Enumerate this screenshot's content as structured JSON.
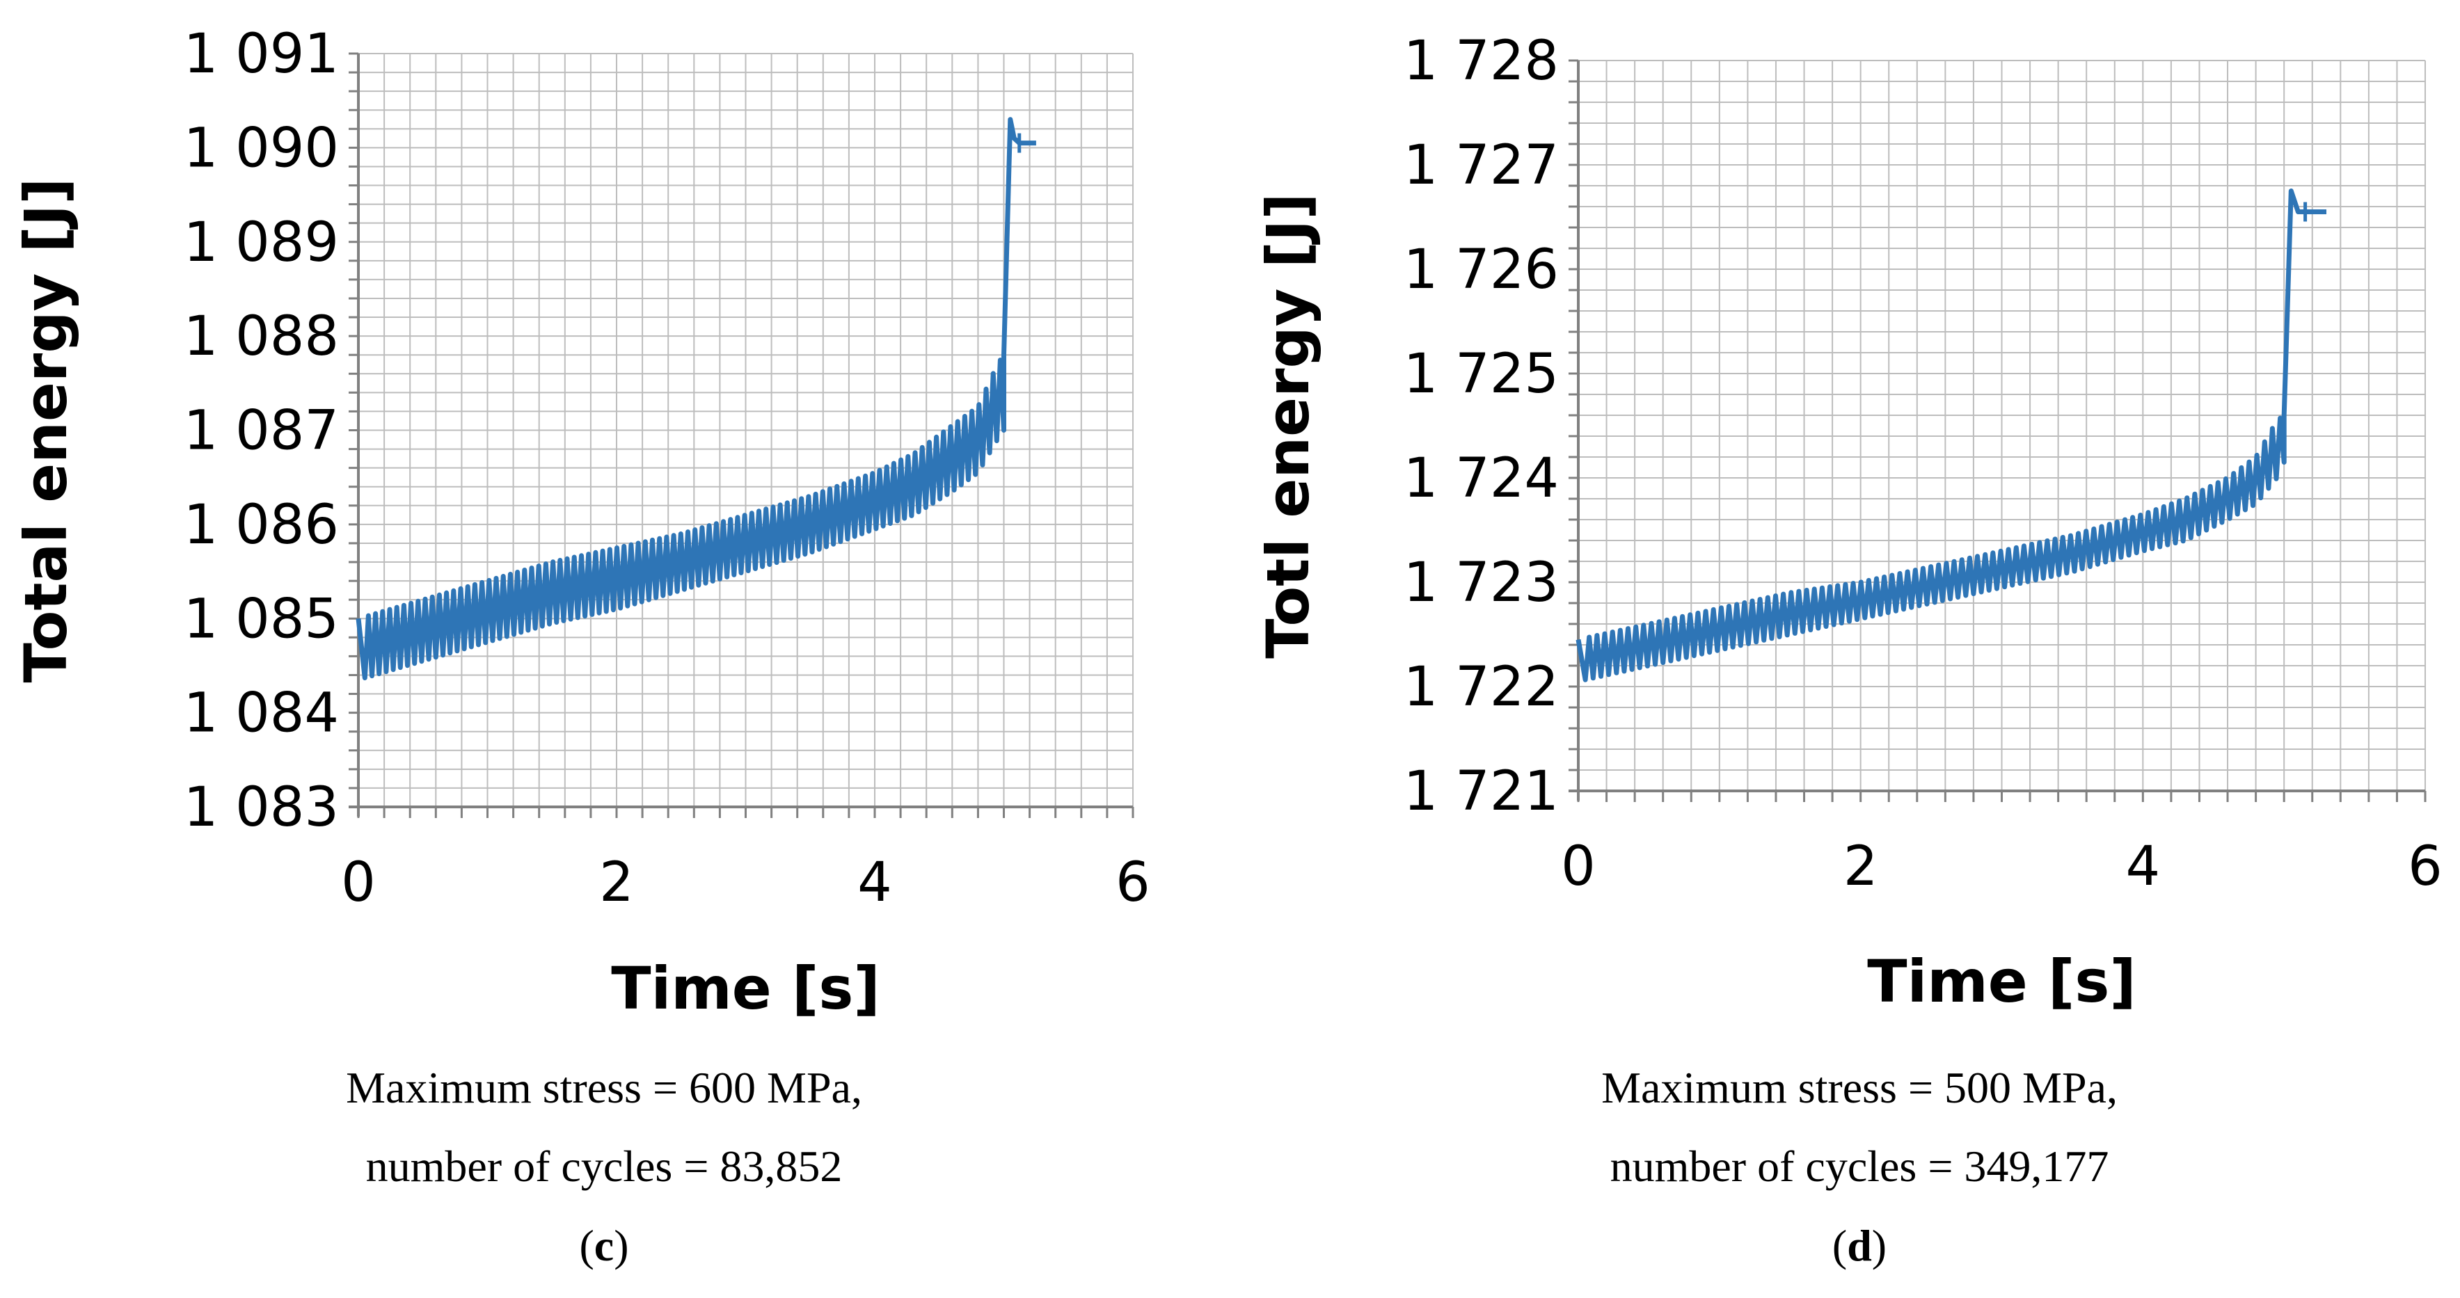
{
  "chart_data": [
    {
      "type": "line",
      "panel": "c",
      "title": "",
      "xlabel": "Time [s]",
      "ylabel": "Total energy [J]",
      "xlim": [
        0,
        6
      ],
      "ylim": [
        1083,
        1091
      ],
      "x_ticks": [
        "0",
        "2",
        "4",
        "6"
      ],
      "y_ticks": [
        "1 083",
        "1 084",
        "1 085",
        "1 086",
        "1 087",
        "1 088",
        "1 089",
        "1 090",
        "1 091"
      ],
      "grid": true,
      "series_color": "#2e75b6",
      "oscillation": {
        "cycles": 90,
        "period_start_s": 0.05,
        "period_end_s": 5.0
      },
      "envelope": {
        "time": [
          0.0,
          0.5,
          1.0,
          1.5,
          2.0,
          2.5,
          3.0,
          3.5,
          4.0,
          4.3,
          4.6,
          4.8,
          4.95,
          5.0
        ],
        "lower": [
          1084.35,
          1084.55,
          1084.75,
          1084.95,
          1085.1,
          1085.3,
          1085.5,
          1085.7,
          1085.95,
          1086.1,
          1086.35,
          1086.55,
          1086.9,
          1087.0
        ],
        "upper": [
          1085.0,
          1085.2,
          1085.4,
          1085.6,
          1085.75,
          1085.9,
          1086.1,
          1086.3,
          1086.55,
          1086.75,
          1087.05,
          1087.25,
          1087.7,
          1087.8
        ]
      },
      "final_jump": {
        "x": [
          5.0,
          5.05,
          5.08,
          5.12,
          5.25
        ],
        "y": [
          1087.8,
          1090.3,
          1090.1,
          1090.05,
          1090.05
        ]
      }
    },
    {
      "type": "line",
      "panel": "d",
      "title": "",
      "xlabel": "Time [s]",
      "ylabel": "Totl energy [J]",
      "xlim": [
        0,
        6
      ],
      "ylim": [
        1721,
        1728
      ],
      "x_ticks": [
        "0",
        "2",
        "4",
        "6"
      ],
      "y_ticks": [
        "1 721",
        "1 722",
        "1 723",
        "1 724",
        "1 725",
        "1 726",
        "1 727",
        "1 728"
      ],
      "grid": true,
      "series_color": "#2e75b6",
      "oscillation": {
        "cycles": 90,
        "period_start_s": 0.05,
        "period_end_s": 5.0
      },
      "envelope": {
        "time": [
          0.0,
          0.5,
          1.0,
          1.5,
          2.0,
          2.5,
          3.0,
          3.5,
          4.0,
          4.3,
          4.6,
          4.8,
          4.95,
          5.0
        ],
        "lower": [
          1722.05,
          1722.2,
          1722.35,
          1722.5,
          1722.65,
          1722.8,
          1722.95,
          1723.1,
          1723.3,
          1723.4,
          1723.6,
          1723.75,
          1724.0,
          1724.15
        ],
        "upper": [
          1722.45,
          1722.6,
          1722.75,
          1722.9,
          1723.0,
          1723.15,
          1723.3,
          1723.45,
          1723.65,
          1723.8,
          1724.0,
          1724.2,
          1724.55,
          1724.6
        ]
      },
      "final_jump": {
        "x": [
          5.0,
          5.05,
          5.1,
          5.15,
          5.3
        ],
        "y": [
          1724.6,
          1726.75,
          1726.55,
          1726.55,
          1726.55
        ]
      }
    }
  ],
  "captions": [
    {
      "line1": "Maximum stress = 600 MPa,",
      "line2": "number of cycles = 83,852",
      "label": "c"
    },
    {
      "line1": "Maximum stress = 500 MPa,",
      "line2": "number of cycles = 349,177",
      "label": "d"
    }
  ]
}
